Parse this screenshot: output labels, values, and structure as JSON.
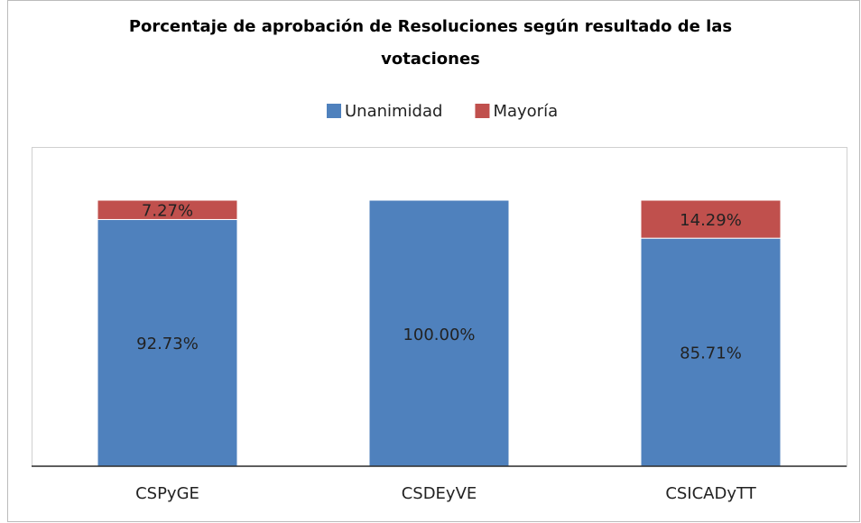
{
  "chart_data": {
    "type": "stacked_bar",
    "title": "Porcentaje de aprobación de Resoluciones según resultado de las votaciones",
    "categories": [
      "CSPyGE",
      "CSDEyVE",
      "CSICADyTT"
    ],
    "series": [
      {
        "name": "Unanimidad",
        "color": "#4f81bd",
        "values": [
          92.73,
          100,
          85.71
        ],
        "value_labels": [
          "92.73%",
          "100.00%",
          "85.71%"
        ]
      },
      {
        "name": "Mayoría",
        "color": "#c0504d",
        "values": [
          7.27,
          0,
          14.29
        ],
        "value_labels": [
          "7.27%",
          null,
          "14.29%"
        ]
      }
    ],
    "ylim": [
      0,
      120
    ],
    "legend": "top"
  }
}
